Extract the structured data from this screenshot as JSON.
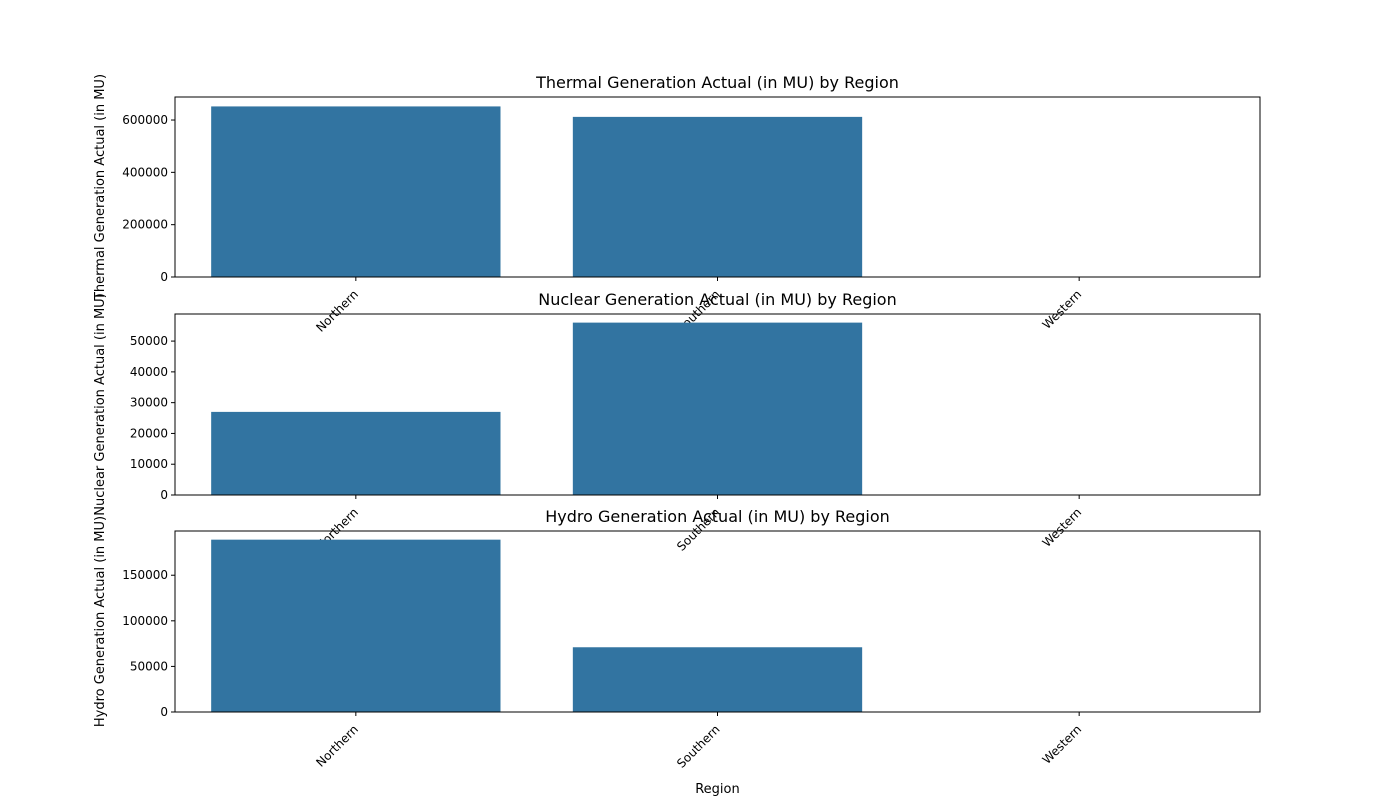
{
  "chart_data": [
    {
      "type": "bar",
      "title": "Thermal Generation Actual (in MU) by Region",
      "xlabel": "",
      "ylabel": "Thermal Generation Actual (in MU)",
      "categories": [
        "Northern",
        "Southern",
        "Western"
      ],
      "values": [
        652000,
        612000,
        0
      ],
      "ylim": [
        0,
        688000
      ],
      "yticks": [
        0,
        200000,
        400000,
        600000
      ],
      "bar_color": "#3274a1",
      "grid": false
    },
    {
      "type": "bar",
      "title": "Nuclear Generation Actual (in MU) by Region",
      "xlabel": "",
      "ylabel": "Nuclear Generation Actual (in MU)",
      "categories": [
        "Northern",
        "Southern",
        "Western"
      ],
      "values": [
        27000,
        56000,
        0
      ],
      "ylim": [
        0,
        58800
      ],
      "yticks": [
        0,
        10000,
        20000,
        30000,
        40000,
        50000
      ],
      "bar_color": "#3274a1",
      "grid": false
    },
    {
      "type": "bar",
      "title": "Hydro Generation Actual (in MU) by Region",
      "xlabel": "Region",
      "ylabel": "Hydro Generation Actual (in MU)",
      "categories": [
        "Northern",
        "Southern",
        "Western"
      ],
      "values": [
        189000,
        71000,
        0
      ],
      "ylim": [
        0,
        198500
      ],
      "yticks": [
        0,
        50000,
        100000,
        150000
      ],
      "bar_color": "#3274a1",
      "grid": false
    }
  ]
}
